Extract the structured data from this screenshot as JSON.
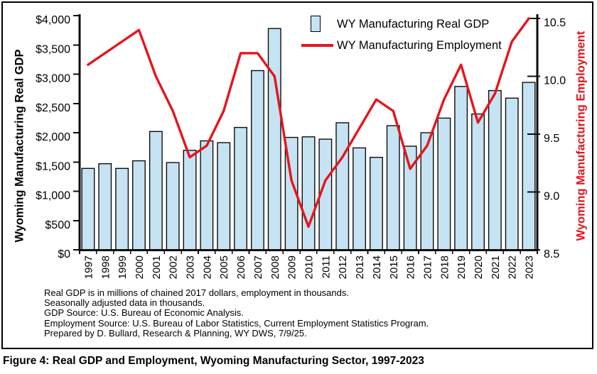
{
  "figure": {
    "caption": "Figure 4: Real GDP and Employment, Wyoming Manufacturing Sector, 1997-2023",
    "footnotes": [
      "Real GDP is in millions of chained 2017 dollars, employment in thousands.",
      "Seasonally adjusted data in thousands.",
      "GDP Source: U.S. Bureau of Economic Analysis.",
      "Employment Source: U.S. Bureau of Labor Statistics, Current Employment Statistics Program.",
      "Prepared by D. Bullard, Research & Planning, WY DWS, 7/9/25."
    ]
  },
  "legend": {
    "gdp_label": "WY Manufacturing Real GDP",
    "employment_label": "WY Manufacturing Employment"
  },
  "axes": {
    "left_title": "Wyoming Manufacturing Real GDP",
    "right_title": "Wyoming Manufacturing Employment",
    "left_ticks": [
      "$4,000",
      "$3,500",
      "$3,000",
      "$2,500",
      "$2,000",
      "$1,500",
      "$1,000",
      "$500",
      "$0"
    ],
    "right_ticks": [
      "10.5",
      "10.0",
      "9.5",
      "9.0",
      "8.5"
    ]
  },
  "colors": {
    "bar_fill": "#c6e3f4",
    "line_red": "#e4151d",
    "axis_black": "#0d0d0d"
  },
  "chart_data": {
    "type": "bar+line",
    "title": "",
    "xlabel": "",
    "ylabel_left": "Wyoming Manufacturing Real GDP",
    "ylabel_right": "Wyoming Manufacturing Employment",
    "grid": false,
    "legend_position": "top-center-inside",
    "categories": [
      1997,
      1998,
      1999,
      2000,
      2001,
      2002,
      2003,
      2004,
      2005,
      2006,
      2007,
      2008,
      2009,
      2010,
      2011,
      2012,
      2013,
      2014,
      2015,
      2016,
      2017,
      2018,
      2019,
      2020,
      2021,
      2022,
      2023
    ],
    "left_axis": {
      "min": 0,
      "max": 4000,
      "step": 500
    },
    "right_axis": {
      "min": 8.5,
      "max": 10.5,
      "step": 0.5
    },
    "series": [
      {
        "name": "WY Manufacturing Real GDP",
        "type": "bar",
        "axis": "left",
        "units": "millions of chained 2017 dollars",
        "values": [
          1390,
          1470,
          1390,
          1520,
          2020,
          1490,
          1700,
          1860,
          1830,
          2090,
          3060,
          3780,
          1920,
          1930,
          1890,
          2170,
          1740,
          1580,
          2120,
          1770,
          2000,
          2250,
          2790,
          2320,
          2720,
          2590,
          2860
        ]
      },
      {
        "name": "WY Manufacturing Employment",
        "type": "line",
        "axis": "right",
        "units": "thousands",
        "values": [
          10.1,
          10.2,
          10.3,
          10.4,
          10.0,
          9.7,
          9.3,
          9.4,
          9.7,
          10.2,
          10.2,
          10.0,
          9.1,
          8.7,
          9.1,
          9.3,
          9.55,
          9.8,
          9.7,
          9.2,
          9.4,
          9.8,
          10.1,
          9.6,
          9.85,
          10.3,
          10.5
        ]
      }
    ]
  }
}
